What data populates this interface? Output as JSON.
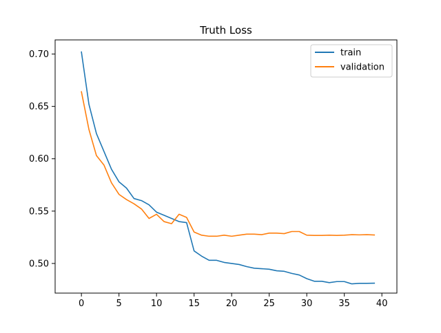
{
  "chart_data": {
    "type": "line",
    "title": "Truth Loss",
    "xlabel": "",
    "ylabel": "",
    "xlim": [
      -3.5,
      42
    ],
    "ylim": [
      0.4717,
      0.7135
    ],
    "x_ticks": [
      0,
      5,
      10,
      15,
      20,
      25,
      30,
      35,
      40
    ],
    "x_tick_labels": [
      "0",
      "5",
      "10",
      "15",
      "20",
      "25",
      "30",
      "35",
      "40"
    ],
    "y_ticks": [
      0.5,
      0.55,
      0.6,
      0.65,
      0.7
    ],
    "y_tick_labels": [
      "0.50",
      "0.55",
      "0.60",
      "0.65",
      "0.70"
    ],
    "grid": false,
    "legend_position": "top-right",
    "x": [
      0,
      1,
      2,
      3,
      4,
      5,
      6,
      7,
      8,
      9,
      10,
      11,
      12,
      13,
      14,
      15,
      16,
      17,
      18,
      19,
      20,
      21,
      22,
      23,
      24,
      25,
      26,
      27,
      28,
      29,
      30,
      31,
      32,
      33,
      34,
      35,
      36,
      37,
      38,
      39
    ],
    "series": [
      {
        "name": "train",
        "color": "#1f77b4",
        "values": [
          0.702,
          0.652,
          0.624,
          0.607,
          0.59,
          0.578,
          0.572,
          0.562,
          0.56,
          0.556,
          0.549,
          0.546,
          0.543,
          0.54,
          0.539,
          0.512,
          0.507,
          0.503,
          0.503,
          0.501,
          0.5,
          0.499,
          0.497,
          0.4955,
          0.495,
          0.4945,
          0.493,
          0.4925,
          0.4905,
          0.489,
          0.4855,
          0.483,
          0.483,
          0.4817,
          0.4827,
          0.4827,
          0.4805,
          0.481,
          0.481,
          0.4812
        ]
      },
      {
        "name": "validation",
        "color": "#ff7f0e",
        "values": [
          0.664,
          0.628,
          0.603,
          0.594,
          0.577,
          0.566,
          0.561,
          0.557,
          0.552,
          0.543,
          0.547,
          0.54,
          0.538,
          0.547,
          0.544,
          0.53,
          0.527,
          0.526,
          0.526,
          0.527,
          0.526,
          0.527,
          0.528,
          0.528,
          0.5275,
          0.529,
          0.529,
          0.5285,
          0.5305,
          0.5305,
          0.527,
          0.5268,
          0.5268,
          0.527,
          0.5268,
          0.527,
          0.5275,
          0.5273,
          0.5275,
          0.5272
        ]
      }
    ]
  }
}
